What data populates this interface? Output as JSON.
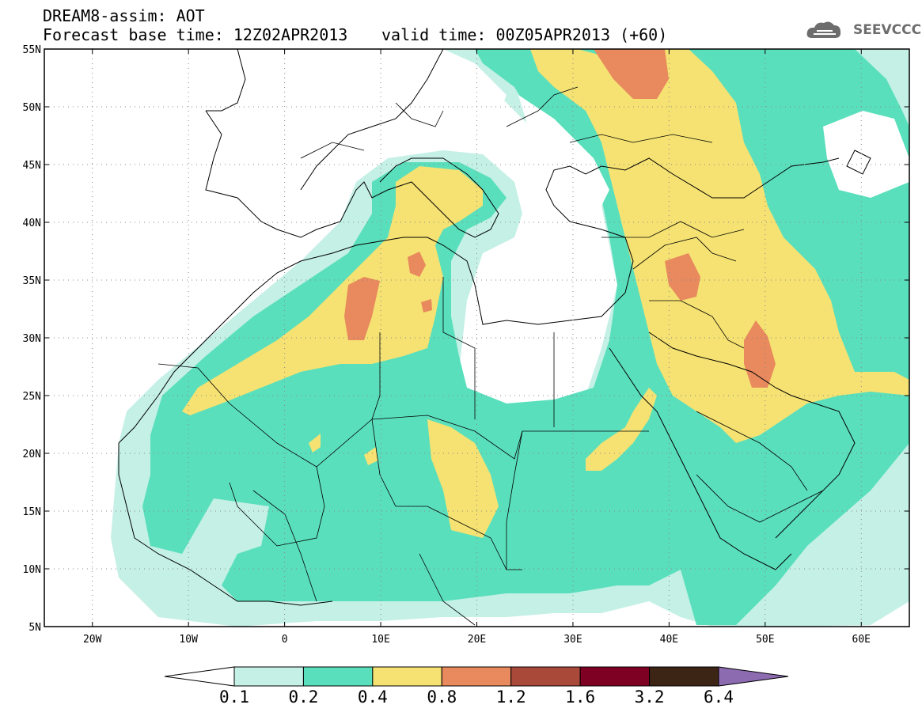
{
  "header": {
    "line1": "DREAM8-assim: AOT",
    "line2": "Forecast base time: 12Z02APR2013",
    "valid": "valid time: 00Z05APR2013 (+60)"
  },
  "logo": {
    "text": "SEEVCCC",
    "icon": "cloud-icon"
  },
  "axes": {
    "lat_labels": [
      "55N",
      "50N",
      "45N",
      "40N",
      "35N",
      "30N",
      "25N",
      "20N",
      "15N",
      "10N",
      "5N"
    ],
    "lon_labels": [
      "20W",
      "10W",
      "0",
      "10E",
      "20E",
      "30E",
      "40E",
      "50E",
      "60E"
    ],
    "lon_range": [
      -25,
      65
    ],
    "lat_range": [
      5,
      55
    ],
    "grid": "dotted"
  },
  "colorbar": {
    "labels": [
      "0.1",
      "0.2",
      "0.4",
      "0.8",
      "1.2",
      "1.6",
      "3.2",
      "6.4"
    ],
    "colors": [
      "#ffffff",
      "#c4f0e6",
      "#5adfbc",
      "#f5e272",
      "#e8895e",
      "#a9493a",
      "#7e0023",
      "#3c2514",
      "#8c6bb1"
    ]
  },
  "colors": {
    "c01": "#c4f0e6",
    "c02": "#5adfbc",
    "c04": "#f5e272",
    "c08": "#e8895e"
  }
}
